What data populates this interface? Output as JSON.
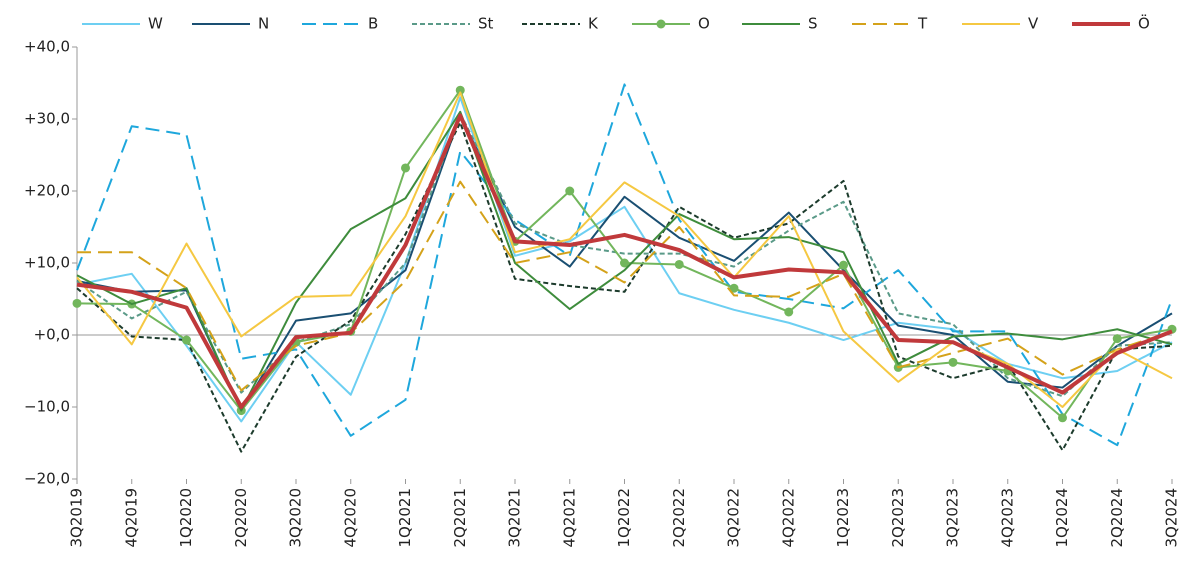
{
  "chart_data": {
    "type": "line",
    "categories": [
      "3Q2019",
      "4Q2019",
      "1Q2020",
      "2Q2020",
      "3Q2020",
      "4Q2020",
      "1Q2021",
      "2Q2021",
      "3Q2021",
      "4Q2021",
      "1Q2022",
      "2Q2022",
      "3Q2022",
      "4Q2022",
      "1Q2023",
      "2Q2023",
      "3Q2023",
      "4Q2023",
      "1Q2024",
      "2Q2024",
      "3Q2024"
    ],
    "ylim": [
      -20,
      40
    ],
    "yticks": [
      {
        "value": 40,
        "label": "+40,0"
      },
      {
        "value": 30,
        "label": "+30,0"
      },
      {
        "value": 20,
        "label": "+20,0"
      },
      {
        "value": 10,
        "label": "+10,0"
      },
      {
        "value": 0,
        "label": "+0,0"
      },
      {
        "value": -10,
        "label": "−10,0"
      },
      {
        "value": -20,
        "label": "−20,0"
      }
    ],
    "grid": false,
    "legend": "top",
    "series": [
      {
        "name": "W",
        "color": "#6dcff2",
        "style": "solid",
        "linewidth": 2,
        "values": [
          7,
          8.5,
          -1.5,
          -12,
          -1,
          -8.3,
          10,
          33,
          11,
          13,
          17.8,
          5.8,
          3.5,
          1.7,
          -0.7,
          1.7,
          0.8,
          -4,
          -6,
          -5,
          -1
        ]
      },
      {
        "name": "N",
        "color": "#1a4f72",
        "style": "solid",
        "linewidth": 2,
        "values": [
          7.5,
          6,
          6.2,
          -10.5,
          2,
          3,
          9,
          30.5,
          15,
          9.5,
          19.2,
          13.5,
          10.3,
          17,
          9,
          1.3,
          0,
          -6.5,
          -7.3,
          -1.5,
          3
        ]
      },
      {
        "name": "B",
        "color": "#1ea7dc",
        "style": "dashed",
        "linewidth": 2,
        "values": [
          9,
          29,
          27.8,
          -3.3,
          -2,
          -14,
          -9,
          25.5,
          16,
          11,
          34.8,
          16,
          6,
          5,
          3.7,
          9,
          0.5,
          0.5,
          -11,
          -15.3,
          5
        ]
      },
      {
        "name": "St",
        "color": "#5a9a88",
        "style": "dotted",
        "linewidth": 2,
        "values": [
          7.5,
          2.3,
          6,
          -8,
          -1,
          1.5,
          10,
          30.8,
          15.5,
          12.5,
          11.3,
          11.3,
          9.5,
          14.5,
          18.5,
          3,
          1.5,
          -6,
          -8.5,
          -1.5,
          -1
        ]
      },
      {
        "name": "K",
        "color": "#1c3b2c",
        "style": "dotted",
        "linewidth": 2,
        "values": [
          6.5,
          -0.2,
          -0.7,
          -16.2,
          -3,
          2,
          14,
          29.5,
          7.8,
          6.8,
          6,
          17.8,
          13.5,
          15.5,
          21.4,
          -3,
          -6,
          -4,
          -16,
          -2,
          -1.5
        ]
      },
      {
        "name": "O",
        "color": "#72b65c",
        "style": "solid",
        "linewidth": 2,
        "markers": true,
        "values": [
          4.4,
          4.3,
          -0.7,
          -10.5,
          -1,
          0.5,
          23.2,
          34,
          13,
          20,
          10,
          9.8,
          6.5,
          3.2,
          9.7,
          -4.5,
          -3.8,
          -5,
          -11.5,
          -0.5,
          0.8
        ]
      },
      {
        "name": "S",
        "color": "#3e8c3c",
        "style": "solid",
        "linewidth": 2,
        "values": [
          8.3,
          4.3,
          6.5,
          -10.5,
          4.5,
          14.7,
          19,
          31,
          10,
          3.6,
          9,
          16.8,
          13.3,
          13.6,
          11.5,
          -4,
          -0.2,
          0.2,
          -0.6,
          0.8,
          -1.3
        ]
      },
      {
        "name": "T",
        "color": "#d4a21a",
        "style": "dashed",
        "linewidth": 2,
        "values": [
          11.5,
          11.5,
          6.5,
          -7.7,
          -1.5,
          0.3,
          7.5,
          21.3,
          10,
          11.5,
          7.3,
          15,
          5.5,
          5.3,
          8.5,
          -4.5,
          -2.5,
          -0.5,
          -5.5,
          -2,
          0.5
        ]
      },
      {
        "name": "V",
        "color": "#f5c842",
        "style": "solid",
        "linewidth": 2,
        "values": [
          8,
          -1.3,
          12.7,
          -0.2,
          5.3,
          5.5,
          16.5,
          33.7,
          11.5,
          13.3,
          21.2,
          16.5,
          8,
          16.5,
          0.5,
          -6.5,
          -1,
          -4,
          -10,
          -2,
          -6
        ]
      },
      {
        "name": "Ö",
        "color": "#c0393b",
        "style": "solid",
        "linewidth": 4,
        "values": [
          7,
          6,
          3.8,
          -10,
          -0.3,
          0.3,
          12.5,
          30.5,
          13,
          12.5,
          13.9,
          11.8,
          8,
          9.1,
          8.7,
          -0.7,
          -1,
          -4.5,
          -8,
          -2.5,
          0.5
        ]
      }
    ]
  }
}
